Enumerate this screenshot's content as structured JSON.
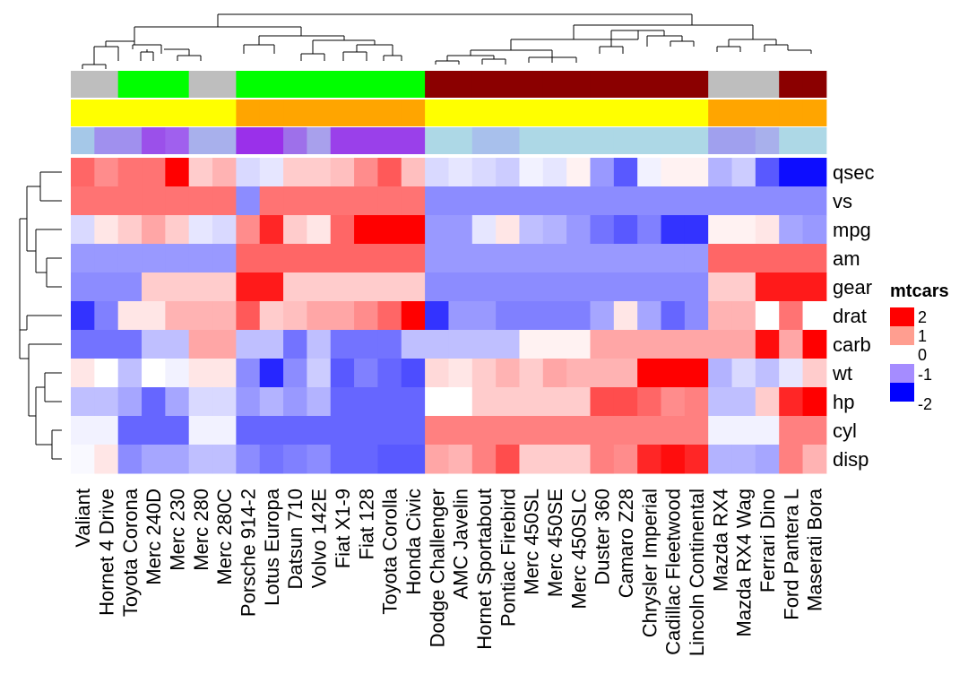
{
  "chart_data": {
    "type": "heatmap",
    "title": "",
    "legend": {
      "title": "mtcars",
      "ticks": [
        "2",
        "1",
        "0",
        "-1",
        "-2"
      ],
      "colors": [
        "#ff0000",
        "#ff9e90",
        "#ffffff",
        "#a58cff",
        "#0000ff"
      ],
      "placement": "right"
    },
    "colors": {
      "low": "#0000ff",
      "mid": "#ffffff",
      "high": "#ff0000"
    },
    "rows": [
      "qsec",
      "vs",
      "mpg",
      "am",
      "gear",
      "drat",
      "carb",
      "wt",
      "hp",
      "cyl",
      "disp"
    ],
    "columns": [
      "Valiant",
      "Hornet 4 Drive",
      "Toyota Corona",
      "Merc 240D",
      "Merc 230",
      "Merc 280",
      "Merc 280C",
      "Porsche 914-2",
      "Lotus Europa",
      "Datsun 710",
      "Volvo 142E",
      "Fiat X1-9",
      "Fiat 128",
      "Toyota Corolla",
      "Honda Civic",
      "Dodge Challenger",
      "AMC Javelin",
      "Hornet Sportabout",
      "Pontiac Firebird",
      "Merc 450SL",
      "Merc 450SE",
      "Merc 450SLC",
      "Duster 360",
      "Camaro Z28",
      "Chrysler Imperial",
      "Cadillac Fleetwood",
      "Lincoln Continental",
      "Mazda RX4",
      "Mazda RX4 Wag",
      "Ferrari Dino",
      "Ford Pantera L",
      "Maserati Bora"
    ],
    "values": [
      [
        1.2,
        0.9,
        1.1,
        1.1,
        2.8,
        0.4,
        0.6,
        -0.3,
        -0.2,
        0.4,
        0.4,
        0.5,
        0.9,
        1.3,
        0.5,
        -0.3,
        -0.2,
        -0.3,
        -0.4,
        -0.1,
        -0.2,
        0.1,
        -0.8,
        -1.3,
        -0.1,
        0.1,
        0.1,
        -0.6,
        -0.4,
        -1.3,
        -1.9,
        -1.9
      ],
      [
        1.1,
        1.1,
        1.1,
        1.1,
        1.1,
        1.1,
        1.1,
        -0.9,
        1.1,
        1.1,
        1.1,
        1.1,
        1.1,
        1.1,
        1.1,
        -0.9,
        -0.9,
        -0.9,
        -0.9,
        -0.9,
        -0.9,
        -0.9,
        -0.9,
        -0.9,
        -0.9,
        -0.9,
        -0.9,
        -0.9,
        -0.9,
        -0.9,
        -0.9,
        -0.9
      ],
      [
        -0.3,
        0.2,
        0.4,
        0.7,
        0.4,
        -0.2,
        -0.3,
        0.9,
        1.7,
        0.4,
        0.2,
        1.2,
        2.3,
        2.3,
        2.0,
        -0.8,
        -0.8,
        -0.2,
        0.2,
        -0.5,
        -0.6,
        -0.8,
        -1.1,
        -1.3,
        -1.0,
        -1.6,
        -1.6,
        0.1,
        0.1,
        0.2,
        -0.7,
        -0.8
      ],
      [
        -0.8,
        -0.8,
        -0.8,
        -0.8,
        -0.8,
        -0.8,
        -0.8,
        1.2,
        1.2,
        1.2,
        1.2,
        1.2,
        1.2,
        1.2,
        1.2,
        -0.8,
        -0.8,
        -0.8,
        -0.8,
        -0.8,
        -0.8,
        -0.8,
        -0.8,
        -0.8,
        -0.8,
        -0.8,
        -0.8,
        1.2,
        1.2,
        1.2,
        1.2,
        1.2
      ],
      [
        -0.9,
        -0.9,
        -0.9,
        0.4,
        0.4,
        0.4,
        0.4,
        1.8,
        1.8,
        0.4,
        0.4,
        0.4,
        0.4,
        0.4,
        0.4,
        -0.9,
        -0.9,
        -0.9,
        -0.9,
        -0.9,
        -0.9,
        -0.9,
        -0.9,
        -0.9,
        -0.9,
        -0.9,
        -0.9,
        0.4,
        0.4,
        1.8,
        1.8,
        1.8
      ],
      [
        -1.6,
        -1.0,
        0.2,
        0.2,
        0.6,
        0.6,
        0.6,
        1.3,
        0.4,
        0.5,
        0.7,
        0.7,
        0.9,
        1.2,
        2.5,
        -1.6,
        -0.8,
        -0.8,
        -1.0,
        -1.0,
        -1.0,
        -1.0,
        -0.7,
        0.2,
        -0.7,
        -1.2,
        -0.9,
        0.6,
        0.6,
        0.0,
        1.1,
        0.0
      ],
      [
        -1.1,
        -1.1,
        -1.1,
        -0.5,
        -0.5,
        0.7,
        0.7,
        -0.5,
        -0.5,
        -1.1,
        -0.5,
        -1.1,
        -1.1,
        -1.1,
        -0.5,
        -0.5,
        -0.5,
        -0.5,
        -0.5,
        0.1,
        0.1,
        0.1,
        0.7,
        0.7,
        0.7,
        0.7,
        0.7,
        0.7,
        0.7,
        1.9,
        0.7,
        3.2
      ],
      [
        0.2,
        0.0,
        -0.5,
        0.0,
        -0.1,
        0.2,
        0.2,
        -0.9,
        -1.7,
        -0.9,
        -0.4,
        -1.3,
        -1.0,
        -1.2,
        -1.4,
        0.3,
        0.2,
        0.4,
        0.6,
        0.4,
        0.7,
        0.6,
        0.6,
        0.6,
        2.1,
        2.1,
        2.3,
        -0.6,
        -0.3,
        -0.5,
        -0.2,
        0.4
      ],
      [
        -0.5,
        -0.5,
        -0.7,
        -1.2,
        -0.7,
        -0.3,
        -0.3,
        -0.8,
        -0.6,
        -0.8,
        -0.6,
        -1.2,
        -1.2,
        -1.2,
        -1.2,
        0.0,
        0.0,
        0.4,
        0.4,
        0.4,
        0.4,
        0.4,
        1.4,
        1.4,
        1.2,
        0.9,
        1.0,
        -0.5,
        -0.5,
        0.4,
        1.7,
        2.7
      ],
      [
        -0.1,
        -0.1,
        -1.2,
        -1.2,
        -1.2,
        -0.1,
        -0.1,
        -1.2,
        -1.2,
        -1.2,
        -1.2,
        -1.2,
        -1.2,
        -1.2,
        -1.2,
        1.0,
        1.0,
        1.0,
        1.0,
        1.0,
        1.0,
        1.0,
        1.0,
        1.0,
        1.0,
        1.0,
        1.0,
        -0.1,
        -0.1,
        -0.1,
        1.0,
        1.0
      ],
      [
        -0.05,
        0.2,
        -0.9,
        -0.7,
        -0.7,
        -0.5,
        -0.5,
        -0.9,
        -1.1,
        -1.0,
        -0.9,
        -1.2,
        -1.2,
        -1.3,
        -1.3,
        0.7,
        0.6,
        1.0,
        1.4,
        0.4,
        0.4,
        0.4,
        1.0,
        0.9,
        1.7,
        1.9,
        1.7,
        -0.6,
        -0.6,
        -0.7,
        1.0,
        0.6
      ]
    ],
    "annotations": [
      {
        "colors": [
          "#bebebe",
          "#bebebe",
          "#00ff00",
          "#00ff00",
          "#00ff00",
          "#bebebe",
          "#bebebe",
          "#00ff00",
          "#00ff00",
          "#00ff00",
          "#00ff00",
          "#00ff00",
          "#00ff00",
          "#00ff00",
          "#00ff00",
          "#8b0000",
          "#8b0000",
          "#8b0000",
          "#8b0000",
          "#8b0000",
          "#8b0000",
          "#8b0000",
          "#8b0000",
          "#8b0000",
          "#8b0000",
          "#8b0000",
          "#8b0000",
          "#bebebe",
          "#bebebe",
          "#bebebe",
          "#8b0000",
          "#8b0000"
        ]
      },
      {
        "colors": [
          "#ffff00",
          "#ffff00",
          "#ffff00",
          "#ffff00",
          "#ffff00",
          "#ffff00",
          "#ffff00",
          "#ffa500",
          "#ffa500",
          "#ffa500",
          "#ffa500",
          "#ffa500",
          "#ffa500",
          "#ffa500",
          "#ffa500",
          "#ffff00",
          "#ffff00",
          "#ffff00",
          "#ffff00",
          "#ffff00",
          "#ffff00",
          "#ffff00",
          "#ffff00",
          "#ffff00",
          "#ffff00",
          "#ffff00",
          "#ffff00",
          "#ffa500",
          "#ffa500",
          "#ffa500",
          "#ffa500",
          "#ffa500"
        ]
      },
      {
        "colors": [
          "#a5c8e8",
          "#a090ee",
          "#a090ee",
          "#9b50ea",
          "#a060ee",
          "#a8b0ec",
          "#a8b0ec",
          "#9a30ea",
          "#9a30ea",
          "#9e70ea",
          "#a8a0ec",
          "#9a40ea",
          "#9a40ea",
          "#9a40ea",
          "#9a40ea",
          "#add8e6",
          "#add8e6",
          "#a8c0ec",
          "#a8c0ec",
          "#add8e6",
          "#add8e6",
          "#add8e6",
          "#add8e6",
          "#add8e6",
          "#add8e6",
          "#add8e6",
          "#add8e6",
          "#a0a0ee",
          "#a0a0ee",
          "#a8b0ec",
          "#add8e6",
          "#add8e6"
        ]
      }
    ]
  }
}
